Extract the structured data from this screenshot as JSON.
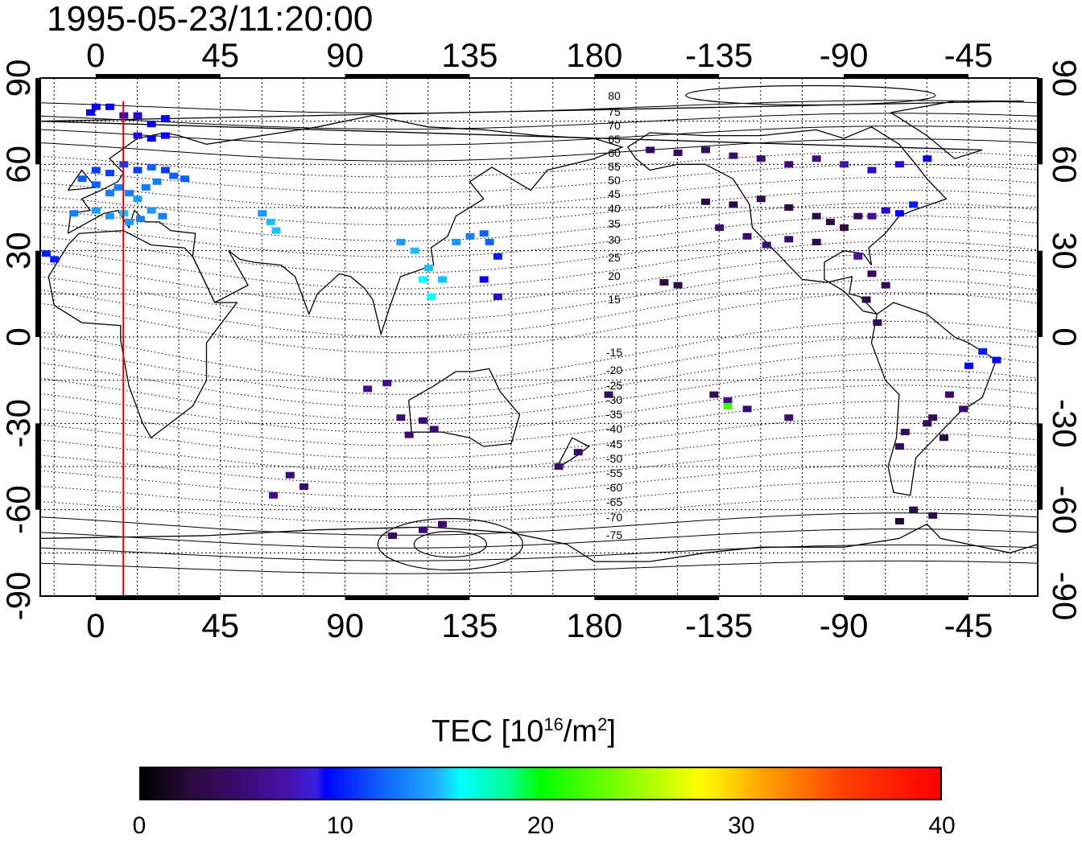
{
  "title": "1995-05-23/11:20:00",
  "map": {
    "projection": "equirectangular",
    "lon_range": [
      -20,
      340
    ],
    "lat_range": [
      -90,
      90
    ],
    "top_axis_labels": [
      "0",
      "45",
      "90",
      "135",
      "180",
      "-135",
      "-90",
      "-45"
    ],
    "bottom_axis_labels": [
      "0",
      "45",
      "90",
      "135",
      "180",
      "-135",
      "-90",
      "-45"
    ],
    "left_axis_labels": [
      "90",
      "60",
      "30",
      "0",
      "-30",
      "-60",
      "-90"
    ],
    "right_axis_labels": [
      "90",
      "60",
      "30",
      "0",
      "-30",
      "-60",
      "-90"
    ],
    "contour_labels_north": [
      "80",
      "75",
      "70",
      "65",
      "60",
      "55",
      "50",
      "45",
      "40",
      "35",
      "30",
      "25",
      "20",
      "15"
    ],
    "contour_labels_south": [
      "-15",
      "-20",
      "-25",
      "-30",
      "-35",
      "-40",
      "-45",
      "-50",
      "-55",
      "-60",
      "-65",
      "-70",
      "-75"
    ],
    "terminator_line_color": "#e00000",
    "terminator_lon": 10
  },
  "colorbar": {
    "title_main": "TEC  [10",
    "title_sup": "16",
    "title_mid": "/m",
    "title_sup2": "2",
    "title_end": "]",
    "min": 0,
    "max": 40,
    "tick_labels": [
      "0",
      "10",
      "20",
      "30",
      "40"
    ]
  }
}
